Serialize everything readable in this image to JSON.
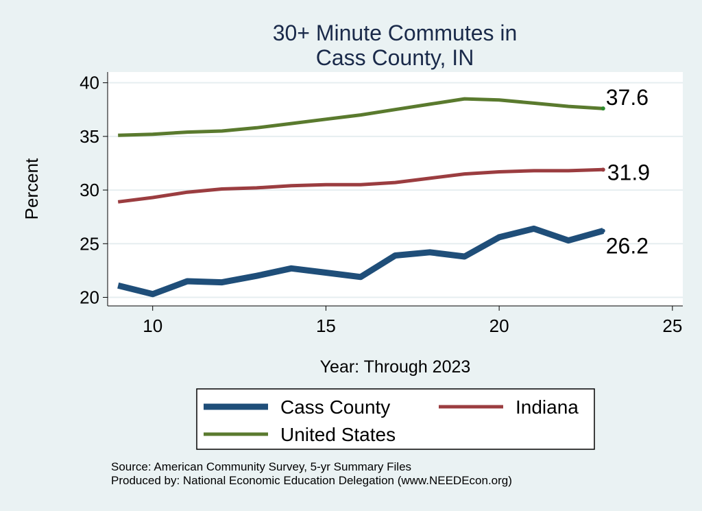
{
  "chart_data": {
    "type": "line",
    "title": [
      "30+ Minute Commutes in",
      "Cass County, IN"
    ],
    "xlabel": "Year: Through 2023",
    "ylabel": "Percent",
    "xlim": [
      8.7,
      25.3
    ],
    "ylim": [
      19.2,
      41
    ],
    "xticks": [
      10,
      15,
      20,
      25
    ],
    "yticks": [
      20,
      25,
      30,
      35,
      40
    ],
    "grid": true,
    "legend_position": "bottom",
    "series": [
      {
        "name": "Cass County",
        "color": "#1f4e79",
        "x": [
          9,
          10,
          11,
          12,
          13,
          14,
          15,
          16,
          17,
          18,
          19,
          20,
          21,
          22,
          23
        ],
        "values": [
          21.1,
          20.3,
          21.5,
          21.4,
          22.0,
          22.7,
          22.3,
          21.9,
          23.9,
          24.2,
          23.8,
          25.6,
          26.4,
          25.3,
          26.2
        ],
        "end_label": "26.2"
      },
      {
        "name": "Indiana",
        "color": "#9b3d40",
        "x": [
          9,
          10,
          11,
          12,
          13,
          14,
          15,
          16,
          17,
          18,
          19,
          20,
          21,
          22,
          23
        ],
        "values": [
          28.9,
          29.3,
          29.8,
          30.1,
          30.2,
          30.4,
          30.5,
          30.5,
          30.7,
          31.1,
          31.5,
          31.7,
          31.8,
          31.8,
          31.9
        ],
        "end_label": "31.9"
      },
      {
        "name": "United States",
        "color": "#5a7a2e",
        "x": [
          9,
          10,
          11,
          12,
          13,
          14,
          15,
          16,
          17,
          18,
          19,
          20,
          21,
          22,
          23
        ],
        "values": [
          35.1,
          35.2,
          35.4,
          35.5,
          35.8,
          36.2,
          36.6,
          37.0,
          37.5,
          38.0,
          38.5,
          38.4,
          38.1,
          37.8,
          37.6
        ],
        "end_label": "37.6"
      }
    ]
  },
  "footer": {
    "source": "Source: American Community Survey, 5-yr Summary Files",
    "produced_by": "Produced by: National Economic Education Delegation (www.NEEDEcon.org)"
  }
}
